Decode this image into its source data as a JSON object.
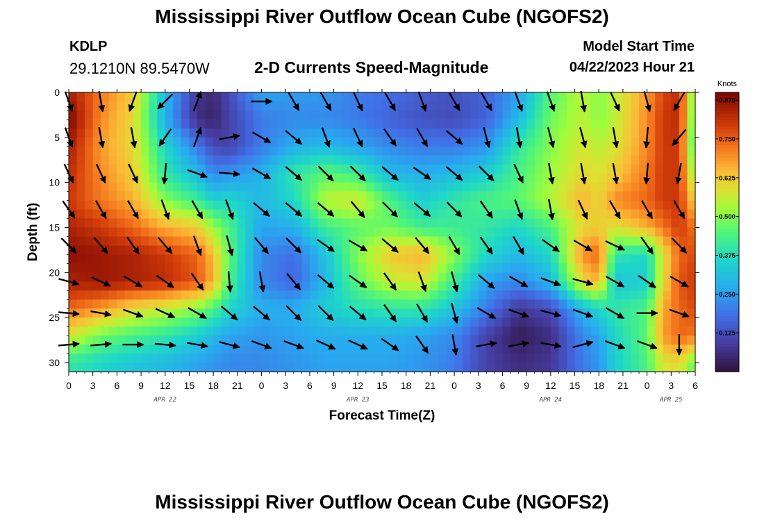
{
  "header": {
    "title": "Mississippi River Outflow Ocean Cube (NGOFS2)",
    "station_id": "KDLP",
    "station_coords": "29.1210N  89.5470W",
    "subtitle": "2-D Currents Speed-Magnitude",
    "model_start_label": "Model Start Time",
    "model_start_time": "04/22/2023 Hour 21"
  },
  "footer": {
    "title": "Mississippi River Outflow Ocean Cube (NGOFS2)"
  },
  "chart_data": {
    "type": "heatmap",
    "title": "2-D Currents Speed-Magnitude",
    "xlabel": "Forecast Time(Z)",
    "ylabel": "Depth (ft)",
    "x_ticks": [
      "0",
      "3",
      "6",
      "9",
      "12",
      "15",
      "18",
      "21",
      "0",
      "3",
      "6",
      "9",
      "12",
      "15",
      "18",
      "21",
      "0",
      "3",
      "6",
      "9",
      "12",
      "15",
      "18",
      "21",
      "0",
      "3",
      "6"
    ],
    "date_labels": [
      {
        "label": "APR 22",
        "hour_index": 12
      },
      {
        "label": "APR 23",
        "hour_index": 36
      },
      {
        "label": "APR 24",
        "hour_index": 60
      },
      {
        "label": "APR 25",
        "hour_index": 75
      }
    ],
    "xlim": [
      0,
      78
    ],
    "y_ticks": [
      0,
      5,
      10,
      15,
      20,
      25,
      30
    ],
    "ylim": [
      0,
      31
    ],
    "colorbar": {
      "label": "Knots",
      "ticks": [
        0.875,
        0.75,
        0.625,
        0.5,
        0.375,
        0.25,
        0.125
      ],
      "range": [
        0,
        0.9
      ]
    },
    "speed_hours": [
      0,
      4,
      8,
      12,
      16,
      18,
      20,
      24,
      28,
      32,
      36,
      40,
      44,
      48,
      52,
      56,
      60,
      64,
      66,
      68,
      72,
      74,
      76,
      78
    ],
    "speed_depths": [
      0,
      3,
      6,
      9,
      12,
      15,
      18,
      21,
      24,
      27,
      30
    ],
    "speed_grid": [
      [
        0.85,
        0.72,
        0.62,
        0.3,
        0.08,
        0.05,
        0.12,
        0.26,
        0.25,
        0.24,
        0.2,
        0.18,
        0.15,
        0.13,
        0.16,
        0.26,
        0.45,
        0.55,
        0.5,
        0.55,
        0.68,
        0.78,
        0.82,
        0.45
      ],
      [
        0.9,
        0.7,
        0.6,
        0.28,
        0.06,
        0.04,
        0.1,
        0.2,
        0.22,
        0.22,
        0.2,
        0.16,
        0.13,
        0.12,
        0.16,
        0.3,
        0.48,
        0.55,
        0.5,
        0.55,
        0.7,
        0.8,
        0.82,
        0.42
      ],
      [
        0.85,
        0.68,
        0.6,
        0.36,
        0.2,
        0.12,
        0.1,
        0.2,
        0.28,
        0.3,
        0.26,
        0.22,
        0.2,
        0.2,
        0.24,
        0.4,
        0.5,
        0.58,
        0.55,
        0.58,
        0.7,
        0.8,
        0.8,
        0.4
      ],
      [
        0.82,
        0.7,
        0.62,
        0.4,
        0.3,
        0.22,
        0.24,
        0.28,
        0.4,
        0.46,
        0.42,
        0.3,
        0.28,
        0.3,
        0.34,
        0.44,
        0.52,
        0.6,
        0.58,
        0.62,
        0.72,
        0.8,
        0.8,
        0.48
      ],
      [
        0.8,
        0.72,
        0.66,
        0.5,
        0.42,
        0.35,
        0.36,
        0.3,
        0.36,
        0.55,
        0.58,
        0.44,
        0.34,
        0.4,
        0.44,
        0.46,
        0.54,
        0.66,
        0.6,
        0.7,
        0.74,
        0.8,
        0.8,
        0.6
      ],
      [
        0.84,
        0.8,
        0.74,
        0.66,
        0.62,
        0.52,
        0.44,
        0.26,
        0.28,
        0.42,
        0.46,
        0.48,
        0.42,
        0.42,
        0.4,
        0.36,
        0.44,
        0.6,
        0.62,
        0.58,
        0.66,
        0.72,
        0.8,
        0.72
      ],
      [
        0.88,
        0.86,
        0.84,
        0.8,
        0.74,
        0.64,
        0.46,
        0.22,
        0.18,
        0.32,
        0.5,
        0.62,
        0.66,
        0.5,
        0.36,
        0.3,
        0.36,
        0.7,
        0.74,
        0.4,
        0.36,
        0.58,
        0.74,
        0.78
      ],
      [
        0.84,
        0.86,
        0.84,
        0.82,
        0.76,
        0.66,
        0.44,
        0.22,
        0.16,
        0.3,
        0.46,
        0.56,
        0.58,
        0.42,
        0.26,
        0.22,
        0.3,
        0.6,
        0.66,
        0.32,
        0.34,
        0.6,
        0.76,
        0.8
      ],
      [
        0.74,
        0.68,
        0.6,
        0.56,
        0.5,
        0.44,
        0.36,
        0.28,
        0.28,
        0.34,
        0.38,
        0.4,
        0.4,
        0.32,
        0.2,
        0.08,
        0.12,
        0.3,
        0.36,
        0.4,
        0.44,
        0.66,
        0.74,
        0.78
      ],
      [
        0.58,
        0.48,
        0.44,
        0.4,
        0.34,
        0.3,
        0.26,
        0.24,
        0.26,
        0.28,
        0.28,
        0.28,
        0.26,
        0.22,
        0.1,
        0.02,
        0.06,
        0.22,
        0.26,
        0.36,
        0.46,
        0.68,
        0.74,
        0.72
      ],
      [
        0.4,
        0.36,
        0.32,
        0.3,
        0.26,
        0.24,
        0.22,
        0.22,
        0.24,
        0.26,
        0.26,
        0.26,
        0.24,
        0.2,
        0.1,
        0.06,
        0.08,
        0.2,
        0.24,
        0.34,
        0.44,
        0.58,
        0.6,
        0.46
      ]
    ],
    "vectors": {
      "hours": [
        0,
        4,
        8,
        12,
        16,
        20,
        24,
        28,
        32,
        36,
        40,
        44,
        48,
        52,
        56,
        60,
        64,
        68,
        72,
        76
      ],
      "depths": [
        1,
        5,
        9,
        13,
        17,
        21,
        24.5,
        28
      ],
      "directions_deg": [
        [
          160,
          170,
          200,
          225,
          20,
          null,
          90,
          150,
          150,
          155,
          150,
          160,
          150,
          150,
          160,
          160,
          170,
          155,
          165,
          210
        ],
        [
          160,
          170,
          170,
          215,
          20,
          80,
          120,
          130,
          160,
          155,
          145,
          150,
          130,
          165,
          170,
          165,
          165,
          170,
          185,
          220
        ],
        [
          155,
          155,
          155,
          185,
          110,
          95,
          120,
          130,
          135,
          135,
          130,
          125,
          130,
          135,
          155,
          170,
          170,
          170,
          185,
          190
        ],
        [
          145,
          150,
          150,
          160,
          150,
          160,
          130,
          130,
          130,
          140,
          135,
          130,
          135,
          145,
          160,
          170,
          155,
          150,
          150,
          150
        ],
        [
          135,
          140,
          145,
          140,
          160,
          165,
          140,
          135,
          125,
          120,
          130,
          140,
          150,
          145,
          150,
          125,
          120,
          115,
          145,
          135
        ],
        [
          105,
          115,
          120,
          125,
          145,
          175,
          170,
          140,
          130,
          125,
          145,
          160,
          165,
          130,
          120,
          110,
          105,
          120,
          125,
          120
        ],
        [
          95,
          100,
          110,
          115,
          120,
          130,
          130,
          135,
          135,
          130,
          145,
          150,
          165,
          120,
          110,
          105,
          110,
          120,
          90,
          110
        ],
        [
          85,
          85,
          90,
          95,
          100,
          105,
          110,
          110,
          115,
          115,
          125,
          145,
          170,
          80,
          80,
          100,
          75,
          110,
          110,
          180
        ]
      ]
    }
  }
}
